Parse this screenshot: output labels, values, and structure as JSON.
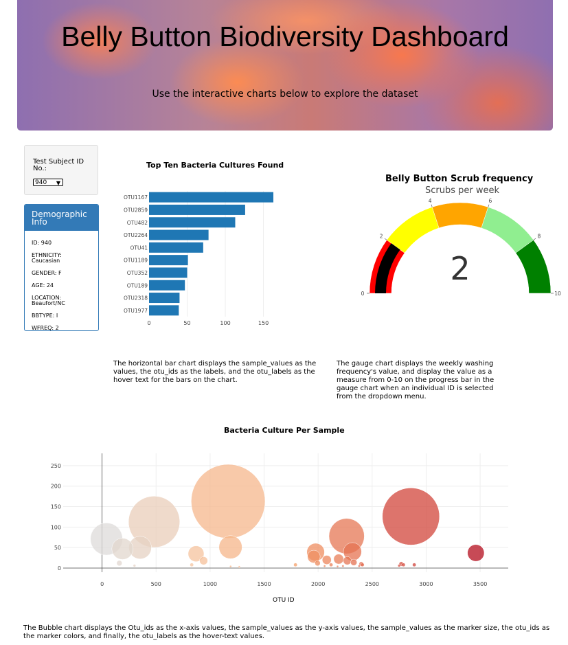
{
  "header": {
    "title": "Belly Button Biodiversity Dashboard",
    "subtitle": "Use the interactive charts below to explore the dataset"
  },
  "selector": {
    "label": "Test Subject ID No.:",
    "value": "940"
  },
  "demographics": {
    "heading": "Demographic Info",
    "lines": [
      "ID: 940",
      "ETHNICITY: Caucasian",
      "GENDER: F",
      "AGE: 24",
      "LOCATION: Beaufort/NC",
      "BBTYPE: I",
      "WFREQ: 2"
    ]
  },
  "descriptions": {
    "bar": "The horizontal bar chart displays the sample_values as the values, the otu_ids as the labels, and the otu_labels as the hover text for the bars on the chart.",
    "gauge": "The gauge chart displays the weekly washing frequency's value, and display the value as a measure from 0-10 on the progress bar in the gauge chart when an individual ID is selected from the dropdown menu.",
    "bubble": "The Bubble chart displays the Otu_ids as the x-axis values, the sample_values as the y-axis values, the sample_values as the marker size, the otu_ids as the marker colors, and finally, the otu_labels as the hover-text values."
  },
  "colors": {
    "bar": "#1f77b4",
    "gauge_steps": [
      "#ff0000",
      "#ffff00",
      "#ffa500",
      "#90ee90",
      "#008000"
    ],
    "gauge_bar": "#000000"
  },
  "chart_data": [
    {
      "type": "bar",
      "title": "Top Ten Bacteria Cultures Found",
      "orientation": "horizontal",
      "categories": [
        "OTU1167",
        "OTU2859",
        "OTU482",
        "OTU2264",
        "OTU41",
        "OTU1189",
        "OTU352",
        "OTU189",
        "OTU2318",
        "OTU1977"
      ],
      "values": [
        163,
        126,
        113,
        78,
        71,
        51,
        50,
        47,
        40,
        39
      ],
      "xticks": [
        0,
        50,
        100,
        150
      ],
      "xlim": [
        0,
        172
      ]
    },
    {
      "type": "gauge",
      "title": "Belly Button Scrub frequency",
      "subtitle": "Scrubs per week",
      "value": 2,
      "range": [
        0,
        10
      ],
      "ticks": [
        0,
        2,
        4,
        6,
        8,
        10
      ],
      "steps": [
        [
          0,
          2
        ],
        [
          2,
          4
        ],
        [
          4,
          6
        ],
        [
          6,
          8
        ],
        [
          8,
          10
        ]
      ]
    },
    {
      "type": "scatter",
      "title": "Bacteria Culture Per Sample",
      "xlabel": "OTU ID",
      "ylabel": "",
      "xlim": [
        -360,
        3760
      ],
      "ylim": [
        -10,
        280
      ],
      "xticks": [
        0,
        500,
        1000,
        1500,
        2000,
        2500,
        3000,
        3500
      ],
      "yticks": [
        0,
        50,
        100,
        150,
        200,
        250
      ],
      "points": [
        {
          "x": 41,
          "y": 71
        },
        {
          "x": 189,
          "y": 47
        },
        {
          "x": 352,
          "y": 50
        },
        {
          "x": 482,
          "y": 113
        },
        {
          "x": 1167,
          "y": 163
        },
        {
          "x": 1189,
          "y": 51
        },
        {
          "x": 2264,
          "y": 78
        },
        {
          "x": 2859,
          "y": 126
        },
        {
          "x": 2318,
          "y": 40
        },
        {
          "x": 1977,
          "y": 39
        },
        {
          "x": 870,
          "y": 35
        },
        {
          "x": 940,
          "y": 18
        },
        {
          "x": 1960,
          "y": 28
        },
        {
          "x": 2190,
          "y": 22
        },
        {
          "x": 2270,
          "y": 18
        },
        {
          "x": 3460,
          "y": 37
        },
        {
          "x": 2080,
          "y": 20
        },
        {
          "x": 1995,
          "y": 12
        },
        {
          "x": 2330,
          "y": 14
        },
        {
          "x": 2400,
          "y": 10
        },
        {
          "x": 2770,
          "y": 10
        },
        {
          "x": 2890,
          "y": 8
        },
        {
          "x": 2790,
          "y": 8
        },
        {
          "x": 1790,
          "y": 8
        },
        {
          "x": 160,
          "y": 12
        },
        {
          "x": 300,
          "y": 6
        },
        {
          "x": 830,
          "y": 8
        },
        {
          "x": 2120,
          "y": 8
        },
        {
          "x": 2410,
          "y": 8
        },
        {
          "x": 2750,
          "y": 6
        },
        {
          "x": 1190,
          "y": 4
        },
        {
          "x": 1270,
          "y": 3
        },
        {
          "x": 2060,
          "y": 5
        },
        {
          "x": 2230,
          "y": 5
        },
        {
          "x": 2180,
          "y": 4
        },
        {
          "x": 2380,
          "y": 5
        }
      ]
    }
  ]
}
